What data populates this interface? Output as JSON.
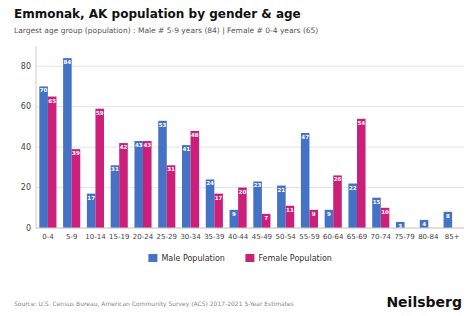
{
  "chart_data": {
    "type": "bar",
    "title": "Emmonak, AK population by gender & age",
    "subtitle": "Largest age group (population) : Male # 5-9 years (84) | Female # 0-4 years (65)",
    "categories": [
      "0-4",
      "5-9",
      "10-14",
      "15-19",
      "20-24",
      "25-29",
      "30-34",
      "35-39",
      "40-44",
      "45-49",
      "50-54",
      "55-59",
      "60-64",
      "65-69",
      "70-74",
      "75-79",
      "80-84",
      "85+"
    ],
    "series": [
      {
        "name": "Male Population",
        "color": "#4472c4",
        "values": [
          70,
          84,
          17,
          31,
          43,
          53,
          41,
          24,
          9,
          23,
          21,
          47,
          9,
          22,
          15,
          3,
          4,
          8
        ]
      },
      {
        "name": "Female Population",
        "color": "#cc1f7a",
        "values": [
          65,
          39,
          59,
          42,
          43,
          31,
          48,
          17,
          20,
          7,
          11,
          9,
          26,
          54,
          10,
          0,
          0,
          0
        ]
      }
    ],
    "ylim": [
      0,
      90
    ],
    "yticks": [
      0,
      20,
      40,
      60,
      80
    ],
    "grid": true,
    "legend": "bottom",
    "data_labels": true,
    "source": "Source: U.S. Census Bureau, American Community Survey (ACS) 2017-2021 5-Year Estimates",
    "brand": "Neilsberg"
  }
}
